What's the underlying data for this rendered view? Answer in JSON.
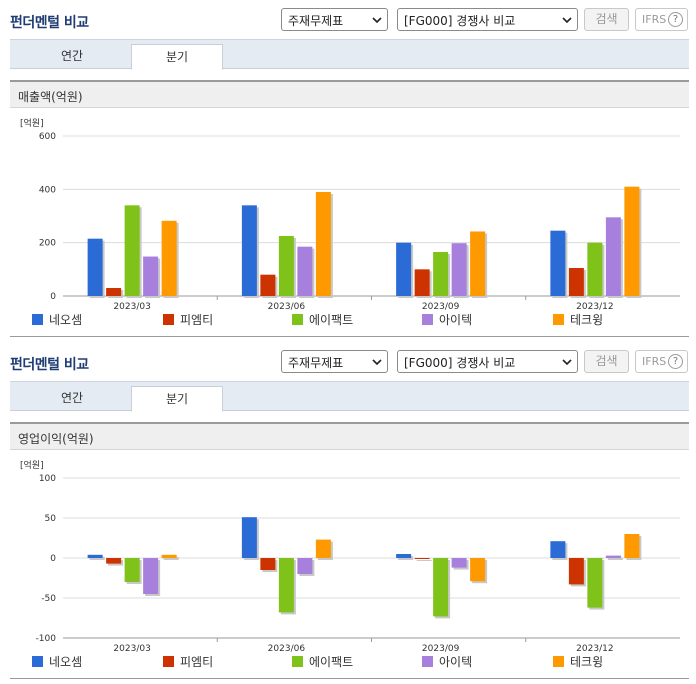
{
  "colors": {
    "title": "#1f3c73",
    "series": [
      "#2a6bd6",
      "#cc3300",
      "#7fc21a",
      "#a77fdc",
      "#ff9900"
    ],
    "grid": "#dcdcdc",
    "axis": "#9a9a9a"
  },
  "panels": [
    {
      "title": "펀더멘털 비교",
      "select_type": "주재무제표",
      "select_group": "[FG000] 경쟁사 비교",
      "search_label": "검색",
      "ifrs_label": "IFRS",
      "help_icon": "?",
      "tabs": [
        "연간",
        "분기"
      ],
      "active_tab": "분기",
      "section_title": "매출액(억원)",
      "unit": "[억원]"
    },
    {
      "title": "펀더멘털 비교",
      "select_type": "주재무제표",
      "select_group": "[FG000] 경쟁사 비교",
      "search_label": "검색",
      "ifrs_label": "IFRS",
      "help_icon": "?",
      "tabs": [
        "연간",
        "분기"
      ],
      "active_tab": "분기",
      "section_title": "영업이익(억원)",
      "unit": "[억원]"
    }
  ],
  "chart_data": [
    {
      "type": "bar",
      "title": "매출액(억원)",
      "ylabel": "[억원]",
      "categories": [
        "2023/03",
        "2023/06",
        "2023/09",
        "2023/12"
      ],
      "ylim": [
        0,
        600
      ],
      "yticks": [
        0,
        200,
        400,
        600
      ],
      "legend": "bottom",
      "series": [
        {
          "name": "네오셈",
          "values": [
            215,
            340,
            200,
            245
          ]
        },
        {
          "name": "피엠티",
          "values": [
            30,
            80,
            100,
            105
          ]
        },
        {
          "name": "에이팩트",
          "values": [
            340,
            225,
            165,
            200
          ]
        },
        {
          "name": "아이텍",
          "values": [
            148,
            185,
            198,
            295
          ]
        },
        {
          "name": "테크윙",
          "values": [
            282,
            390,
            242,
            410
          ]
        }
      ]
    },
    {
      "type": "bar",
      "title": "영업이익(억원)",
      "ylabel": "[억원]",
      "categories": [
        "2023/03",
        "2023/06",
        "2023/09",
        "2023/12"
      ],
      "ylim": [
        -100,
        100
      ],
      "yticks": [
        -100,
        -50,
        0,
        50,
        100
      ],
      "legend": "bottom",
      "series": [
        {
          "name": "네오셈",
          "values": [
            4,
            51,
            5,
            21
          ]
        },
        {
          "name": "피엠티",
          "values": [
            -7,
            -15,
            0,
            -33
          ]
        },
        {
          "name": "에이팩트",
          "values": [
            -30,
            -68,
            -73,
            -62
          ]
        },
        {
          "name": "아이텍",
          "values": [
            -45,
            -20,
            -12,
            3
          ]
        },
        {
          "name": "테크윙",
          "values": [
            4,
            23,
            -29,
            30
          ]
        }
      ]
    }
  ]
}
